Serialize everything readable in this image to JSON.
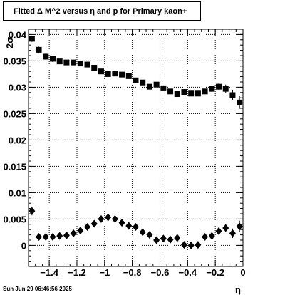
{
  "title": "Fitted Δ M^2 versus η and p for Primary kaon+",
  "timestamp": "Sun Jun 29 06:46:56 2025",
  "chart_data": {
    "type": "scatter",
    "xlabel": "η",
    "ylabel": "2σ",
    "xlim": [
      -1.55,
      0.0
    ],
    "ylim": [
      -0.004,
      0.041
    ],
    "grid": true,
    "x_ticks": [
      -1.4,
      -1.2,
      -1,
      -0.8,
      -0.6,
      -0.4,
      -0.2,
      0
    ],
    "x_tick_labels": [
      "−1.4",
      "−1.2",
      "−1",
      "−0.8",
      "−0.6",
      "−0.4",
      "−0.2",
      "0"
    ],
    "y_ticks": [
      0,
      0.005,
      0.01,
      0.015,
      0.02,
      0.025,
      0.03,
      0.035,
      0.04
    ],
    "y_tick_labels": [
      "0",
      "0.005",
      "0.01",
      "0.015",
      "0.02",
      "0.025",
      "0.03",
      "0.035",
      "0.04"
    ],
    "series": [
      {
        "marker": "square",
        "color": "#000000",
        "x": [
          -1.525,
          -1.475,
          -1.425,
          -1.375,
          -1.325,
          -1.275,
          -1.225,
          -1.175,
          -1.125,
          -1.075,
          -1.025,
          -0.975,
          -0.925,
          -0.875,
          -0.825,
          -0.775,
          -0.725,
          -0.675,
          -0.625,
          -0.575,
          -0.525,
          -0.475,
          -0.425,
          -0.375,
          -0.325,
          -0.275,
          -0.225,
          -0.175,
          -0.125,
          -0.075,
          -0.025
        ],
        "y": [
          0.0392,
          0.0371,
          0.0358,
          0.0354,
          0.0349,
          0.0347,
          0.0347,
          0.0345,
          0.0343,
          0.0337,
          0.033,
          0.0325,
          0.0326,
          0.0324,
          0.0321,
          0.0313,
          0.0309,
          0.0301,
          0.0305,
          0.0298,
          0.0292,
          0.0287,
          0.0291,
          0.0288,
          0.0288,
          0.0292,
          0.0297,
          0.0301,
          0.0297,
          0.0285,
          0.0271
        ],
        "yerr": [
          0.0006,
          0.0006,
          0.0006,
          0.0006,
          0.0005,
          0.0005,
          0.0005,
          0.0005,
          0.0005,
          0.0005,
          0.0005,
          0.0005,
          0.0005,
          0.0005,
          0.0005,
          0.0005,
          0.0005,
          0.0005,
          0.0005,
          0.0005,
          0.0005,
          0.0005,
          0.0005,
          0.0005,
          0.0005,
          0.0005,
          0.0006,
          0.0006,
          0.0008,
          0.001,
          0.0012
        ]
      },
      {
        "marker": "diamond",
        "color": "#000000",
        "x": [
          -1.525,
          -1.475,
          -1.425,
          -1.375,
          -1.325,
          -1.275,
          -1.225,
          -1.175,
          -1.125,
          -1.075,
          -1.025,
          -0.975,
          -0.925,
          -0.875,
          -0.825,
          -0.775,
          -0.725,
          -0.675,
          -0.625,
          -0.575,
          -0.525,
          -0.475,
          -0.425,
          -0.375,
          -0.325,
          -0.275,
          -0.225,
          -0.175,
          -0.125,
          -0.075,
          -0.025
        ],
        "y": [
          0.0065,
          0.0016,
          0.0016,
          0.0016,
          0.0018,
          0.0019,
          0.0023,
          0.0028,
          0.0035,
          0.0041,
          0.005,
          0.0053,
          0.005,
          0.0043,
          0.0037,
          0.0035,
          0.0025,
          0.002,
          0.001,
          0.0013,
          0.0011,
          0.0014,
          0.0001,
          0.0,
          0.0001,
          0.0016,
          0.0018,
          0.0027,
          0.0033,
          0.0023,
          0.0036
        ],
        "yerr": [
          0.0008,
          0.0004,
          0.0004,
          0.0004,
          0.0004,
          0.0004,
          0.0004,
          0.0004,
          0.0004,
          0.0004,
          0.0004,
          0.0004,
          0.0004,
          0.0004,
          0.0004,
          0.0004,
          0.0004,
          0.0004,
          0.0004,
          0.0004,
          0.0004,
          0.0004,
          0.0004,
          0.0004,
          0.0004,
          0.0004,
          0.0004,
          0.0005,
          0.0007,
          0.0009,
          0.0011
        ]
      }
    ]
  }
}
